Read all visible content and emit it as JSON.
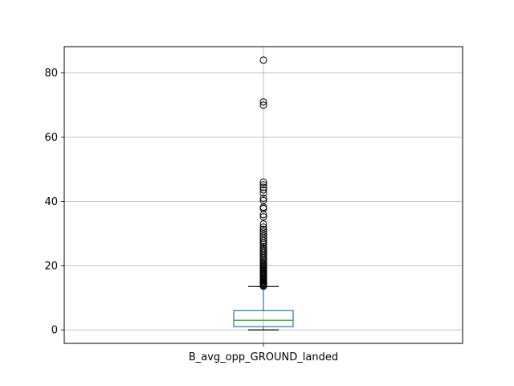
{
  "chart_data": {
    "type": "box",
    "title": "",
    "xlabel": "",
    "ylabel": "",
    "categories": [
      "B_avg_opp_GROUND_landed"
    ],
    "ylim": [
      -4.2,
      88.2
    ],
    "yticks": [
      0,
      20,
      40,
      60,
      80
    ],
    "grid": true,
    "box": {
      "whisker_low": 0,
      "q1": 1,
      "median": 3,
      "q3": 6,
      "whisker_high": 13.5
    },
    "outliers": [
      13.6,
      13.9,
      14.2,
      14.5,
      14.8,
      15.1,
      15.4,
      15.7,
      16.0,
      16.3,
      16.6,
      17.0,
      17.3,
      17.6,
      18.0,
      18.3,
      18.6,
      19.0,
      19.3,
      19.7,
      20.0,
      20.4,
      20.8,
      21.2,
      21.6,
      22.0,
      22.5,
      23.0,
      23.5,
      24.0,
      24.5,
      25.0,
      25.5,
      26.0,
      26.6,
      27.2,
      27.8,
      28.5,
      29.2,
      29.9,
      30.6,
      31.3,
      32.0,
      33.0,
      35.2,
      35.9,
      37.8,
      38.2,
      40.3,
      41.0,
      42.6,
      43.6,
      44.4,
      45.2,
      46.0,
      70.0,
      71.0,
      84.0
    ],
    "colors": {
      "box": "#1f77b4",
      "median": "#2ca02c",
      "whisker": "#1f77b4",
      "cap": "#000000",
      "grid": "#b0b0b0"
    }
  }
}
